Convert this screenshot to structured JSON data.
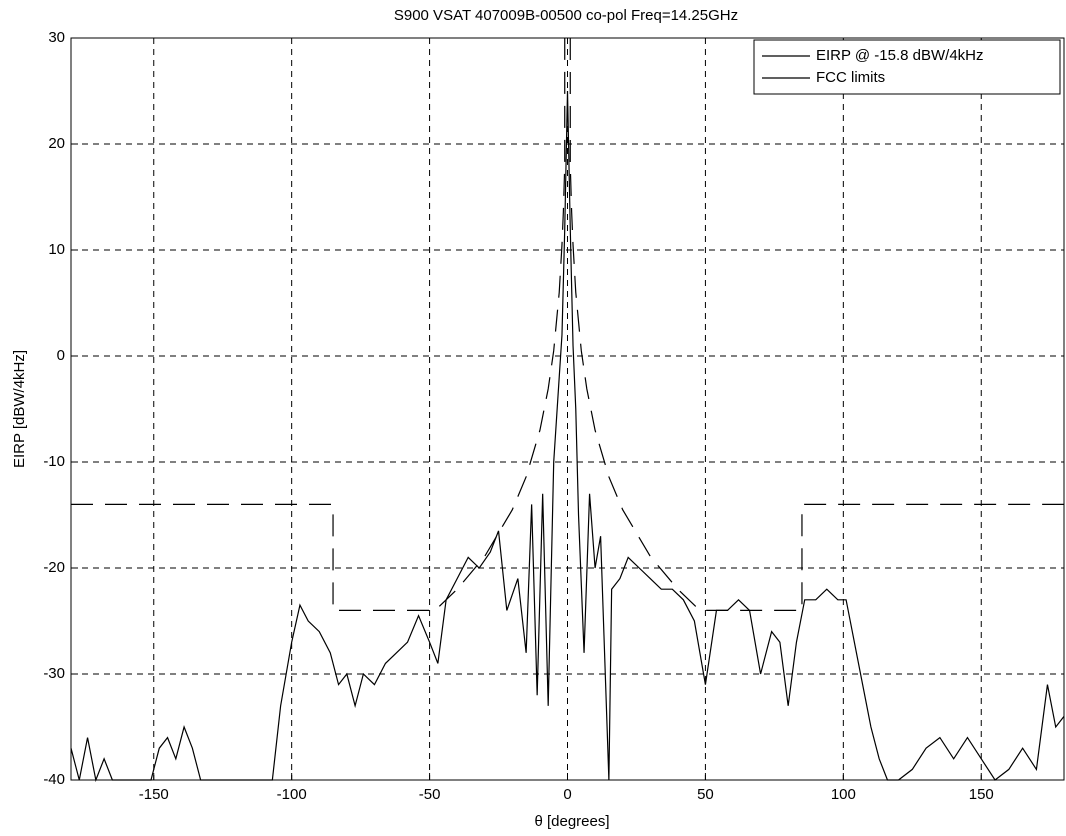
{
  "chart_data": {
    "type": "line",
    "title": "S900 VSAT 407009B-00500  co-pol Freq=14.25GHz",
    "x_label": "θ [degrees]",
    "y_label": "EIRP [dBW/4kHz]",
    "xlim": [
      -180,
      180
    ],
    "xticks": [
      -150,
      -100,
      -50,
      0,
      50,
      100,
      150
    ],
    "ylim": [
      -40,
      30
    ],
    "yticks": [
      -40,
      -30,
      -20,
      -10,
      0,
      10,
      20,
      30
    ],
    "grid": true,
    "legend": "northeast",
    "series": [
      {
        "name": "EIRP @ -15.8 dBW/4kHz",
        "color": "#000000",
        "style": "solid",
        "x": [
          -180,
          -177,
          -174,
          -171,
          -168,
          -165,
          -162,
          -158,
          -155,
          -151,
          -148,
          -145,
          -142,
          -139,
          -136,
          -133,
          -128,
          -120,
          -112,
          -108,
          -107,
          -104,
          -100,
          -97,
          -94,
          -90,
          -86,
          -83,
          -80,
          -77,
          -74,
          -70,
          -66,
          -62,
          -58,
          -54,
          -50,
          -47,
          -44,
          -40,
          -36,
          -32,
          -28,
          -25,
          -22,
          -18,
          -15,
          -13,
          -11,
          -9,
          -7,
          -5,
          -3,
          -2,
          -1,
          0,
          1,
          2,
          3,
          4,
          6,
          8,
          10,
          12,
          15,
          16,
          19,
          22,
          26,
          30,
          34,
          38,
          42,
          46,
          50,
          54,
          58,
          62,
          66,
          70,
          74,
          77,
          80,
          83,
          86,
          90,
          94,
          98,
          101,
          104,
          107,
          110,
          113,
          116,
          120,
          125,
          130,
          135,
          140,
          145,
          150,
          155,
          160,
          165,
          170,
          174,
          177,
          180
        ],
        "values": [
          -37,
          -40,
          -36,
          -40,
          -38,
          -40,
          -40,
          -40,
          -40,
          -40,
          -37,
          -36,
          -38,
          -35,
          -37,
          -40,
          -40,
          -40,
          -40,
          -40,
          -40,
          -33,
          -27,
          -23.5,
          -25,
          -26,
          -28,
          -31,
          -30,
          -33,
          -30,
          -31,
          -29,
          -28,
          -27,
          -24.5,
          -27,
          -29,
          -23,
          -21,
          -19,
          -20,
          -18.5,
          -16.5,
          -24,
          -21,
          -28,
          -14,
          -32,
          -13,
          -33,
          -10,
          -2,
          2,
          12,
          25,
          12,
          1,
          -5,
          -15,
          -28,
          -13,
          -20,
          -17,
          -40,
          -22,
          -21,
          -19,
          -20,
          -21,
          -22,
          -22,
          -23,
          -25,
          -31,
          -24,
          -24,
          -23,
          -24,
          -30,
          -26,
          -27,
          -33,
          -27,
          -23,
          -23,
          -22,
          -23,
          -23,
          -27,
          -31,
          -35,
          -38,
          -40,
          -40,
          -39,
          -37,
          -36,
          -38,
          -36,
          -38,
          -40,
          -39,
          -37,
          -39,
          -31,
          -35,
          -34
        ]
      },
      {
        "name": "FCC limits",
        "color": "#000000",
        "style": "dashed",
        "x": [
          -180,
          -85,
          -85,
          -48,
          -40,
          -30,
          -20,
          -15,
          -10,
          -7,
          -5,
          -3,
          -2,
          -1.5,
          -1,
          -1,
          null,
          1,
          1,
          1.5,
          2,
          3,
          5,
          7,
          10,
          15,
          20,
          30,
          40,
          48,
          85,
          85,
          180
        ],
        "values": [
          -14,
          -14,
          -24,
          -24,
          -22,
          -18.9,
          -14.5,
          -11.4,
          -7,
          -3.1,
          0.5,
          6,
          10.5,
          13.6,
          18,
          30,
          null,
          30,
          18,
          13.6,
          10.5,
          6,
          0.5,
          -3.1,
          -7,
          -11.4,
          -14.5,
          -18.9,
          -22,
          -24,
          -24,
          -14,
          -14
        ]
      }
    ]
  }
}
